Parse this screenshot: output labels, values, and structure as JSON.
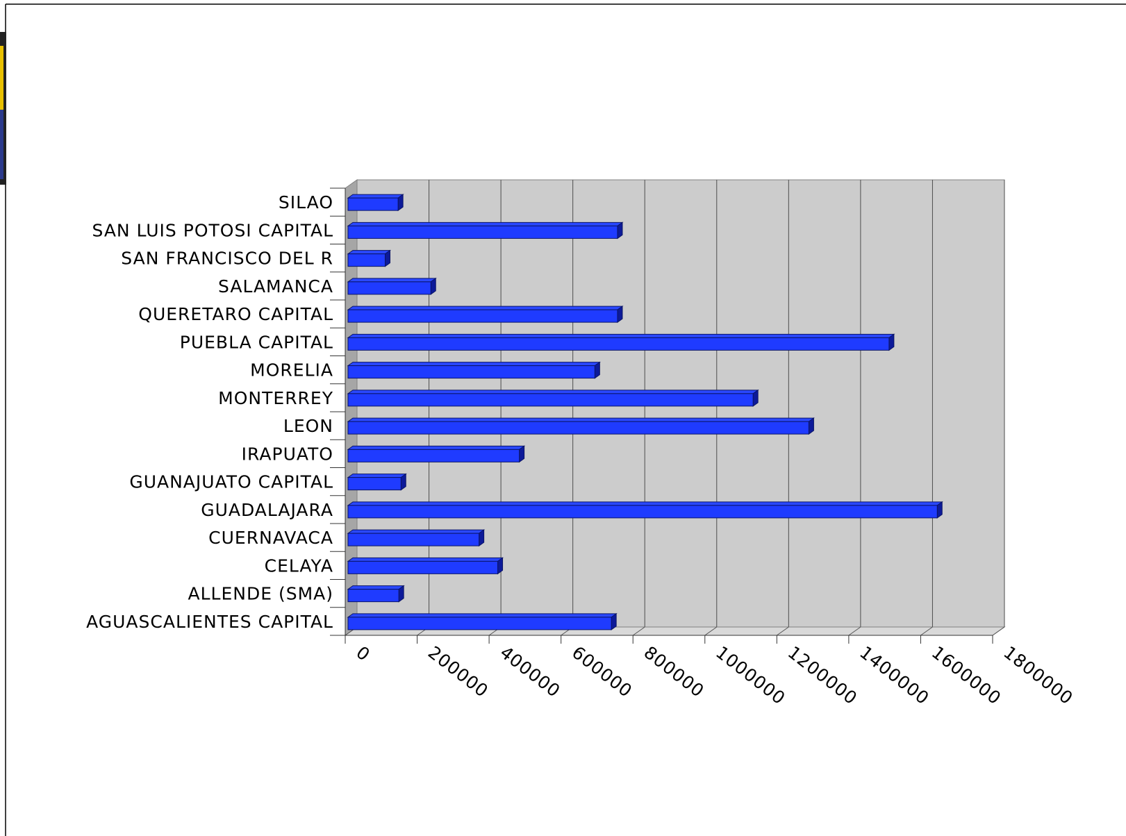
{
  "colors": {
    "bar_front": "#1f3bff",
    "bar_top": "#2a48ff",
    "bar_side": "#0d1a99",
    "bar_outline": "#0a1466",
    "plot_wall": "#cccccc",
    "plot_floor": "#d9d9d9",
    "side_wall": "#a6a6a6",
    "gridline": "#4d4d4d",
    "accent_yellow": "#e8c000",
    "accent_navy": "#2b3a8c"
  },
  "chart_data": {
    "type": "bar",
    "orientation": "horizontal",
    "three_d": true,
    "title": "",
    "xlabel": "",
    "ylabel": "",
    "xlim": [
      0,
      1800000
    ],
    "x_ticks": [
      "0",
      "200000",
      "400000",
      "600000",
      "800000",
      "1000000",
      "1200000",
      "1400000",
      "1600000",
      "1800000"
    ],
    "grid": true,
    "legend": "none",
    "categories": [
      "SILAO",
      "SAN LUIS POTOSI CAPITAL",
      "SAN FRANCISCO DEL R",
      "SALAMANCA",
      "QUERETARO CAPITAL",
      "PUEBLA CAPITAL",
      "MORELIA",
      "MONTERREY",
      "LEON",
      "IRAPUATO",
      "GUANAJUATO CAPITAL",
      "GUADALAJARA",
      "CUERNAVACA",
      "CELAYA",
      "ALLENDE (SMA)",
      "AGUASCALIENTES CAPITAL"
    ],
    "values": [
      147000,
      757000,
      111000,
      238000,
      757000,
      1512000,
      694000,
      1134000,
      1289000,
      484000,
      155000,
      1646000,
      372000,
      424000,
      149000,
      740000
    ]
  }
}
